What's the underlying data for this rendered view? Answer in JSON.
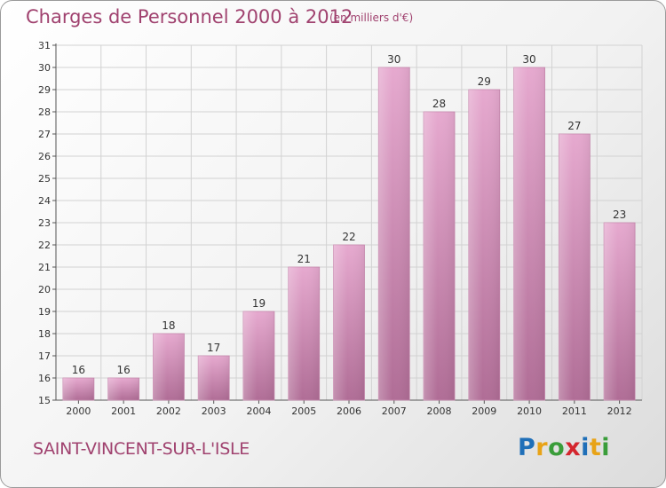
{
  "header": {
    "title": "Charges de Personnel 2000 à 2012",
    "subtitle": "(en milliers d'€)"
  },
  "footer": {
    "commune": "SAINT-VINCENT-SUR-L'ISLE",
    "brand": {
      "text": "Proxiti",
      "letter_colors": [
        "#1f6fb8",
        "#e8a317",
        "#3a9d3a",
        "#d4262e",
        "#1f6fb8",
        "#e8a317",
        "#3a9d3a"
      ]
    }
  },
  "colors": {
    "title": "#a0426f",
    "bar_light": "#e6a9cf",
    "bar_dark": "#b06d96",
    "axis": "#444444"
  },
  "chart_data": {
    "type": "bar",
    "categories": [
      "2000",
      "2001",
      "2002",
      "2003",
      "2004",
      "2005",
      "2006",
      "2007",
      "2008",
      "2009",
      "2010",
      "2011",
      "2012"
    ],
    "values": [
      16,
      16,
      18,
      17,
      19,
      21,
      22,
      30,
      28,
      29,
      30,
      27,
      23
    ],
    "ylim": [
      15,
      31
    ],
    "yticks": [
      15,
      16,
      17,
      18,
      19,
      20,
      21,
      22,
      23,
      24,
      25,
      26,
      27,
      28,
      29,
      30,
      31
    ],
    "grid": true,
    "data_labels": true
  }
}
